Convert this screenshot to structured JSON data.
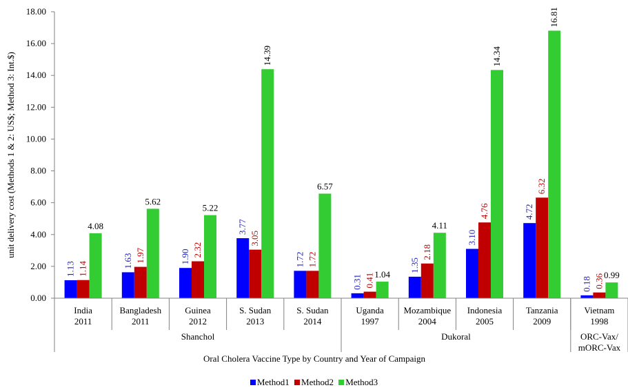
{
  "chart_data": {
    "type": "bar",
    "ylabel": "unit delivery cost (Methods 1 & 2: US$; Method 3: Int.$)",
    "xlabel": "Oral Cholera Vaccine Type by Country and Year of Campaign",
    "ylim": [
      0,
      18
    ],
    "yticks": [
      "0.00",
      "2.00",
      "4.00",
      "6.00",
      "8.00",
      "10.00",
      "12.00",
      "14.00",
      "16.00",
      "18.00"
    ],
    "grid": false,
    "legend_position": "bottom",
    "categories": [
      [
        "India",
        "2011"
      ],
      [
        "Bangladesh",
        "2011"
      ],
      [
        "Guinea",
        "2012"
      ],
      [
        "S. Sudan",
        "2013"
      ],
      [
        "S. Sudan",
        "2014"
      ],
      [
        "Uganda",
        "1997"
      ],
      [
        "Mozambique",
        "2004"
      ],
      [
        "Indonesia",
        "2005"
      ],
      [
        "Tanzania",
        "2009"
      ],
      [
        "Vietnam",
        "1998"
      ]
    ],
    "groups": [
      {
        "name": [
          "Shanchol"
        ],
        "start": 0,
        "end": 4
      },
      {
        "name": [
          "Dukoral"
        ],
        "start": 5,
        "end": 8
      },
      {
        "name": [
          "ORC-Vax/",
          "mORC-Vax"
        ],
        "start": 9,
        "end": 9
      }
    ],
    "series": [
      {
        "name": "Method1",
        "color": "#0000ff",
        "label_color": "#1f1fbf",
        "label_rotated": true,
        "values": [
          1.13,
          1.63,
          1.9,
          3.77,
          1.72,
          0.31,
          1.35,
          3.1,
          4.72,
          0.18
        ],
        "labels": [
          "1.13",
          "1.63",
          "1.90",
          "3.77",
          "1.72",
          "0.31",
          "1.35",
          "3.10",
          "4.72",
          "0.18"
        ]
      },
      {
        "name": "Method2",
        "color": "#c00000",
        "label_color": "#c00000",
        "label_rotated": true,
        "values": [
          1.14,
          1.97,
          2.32,
          3.05,
          1.72,
          0.41,
          2.18,
          4.76,
          6.32,
          0.36
        ],
        "labels": [
          "1.14",
          "1.97",
          "2.32",
          "3.05",
          "1.72",
          "0.41",
          "2.18",
          "4.76",
          "6.32",
          "0.36"
        ]
      },
      {
        "name": "Method3",
        "color": "#33cc33",
        "label_color": "#000000",
        "label_rotated_when_tall": true,
        "values": [
          4.08,
          5.62,
          5.22,
          14.39,
          6.57,
          1.04,
          4.11,
          14.34,
          16.81,
          0.99
        ],
        "labels": [
          "4.08",
          "5.62",
          "5.22",
          "14.39",
          "6.57",
          "1.04",
          "4.11",
          "14.34",
          "16.81",
          "0.99"
        ]
      }
    ]
  }
}
